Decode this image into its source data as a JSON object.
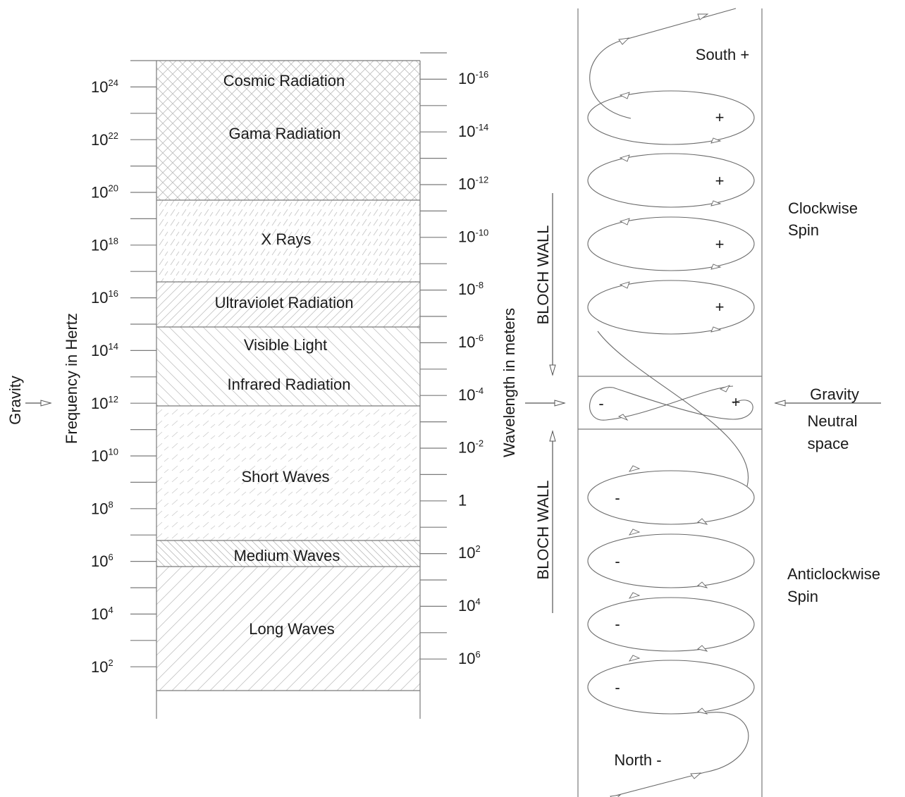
{
  "spectrum": {
    "frequency_axis_label": "Frequency in Hertz",
    "wavelength_axis_label": "Wavelength in meters",
    "gravity_label": "Gravity",
    "frequency_ticks": [
      {
        "base": "10",
        "exp": "24"
      },
      {
        "base": "10",
        "exp": "22"
      },
      {
        "base": "10",
        "exp": "20"
      },
      {
        "base": "10",
        "exp": "18"
      },
      {
        "base": "10",
        "exp": "16"
      },
      {
        "base": "10",
        "exp": "14"
      },
      {
        "base": "10",
        "exp": "12"
      },
      {
        "base": "10",
        "exp": "10"
      },
      {
        "base": "10",
        "exp": "8"
      },
      {
        "base": "10",
        "exp": "6"
      },
      {
        "base": "10",
        "exp": "4"
      },
      {
        "base": "10",
        "exp": "2"
      }
    ],
    "wavelength_ticks": [
      {
        "base": "10",
        "exp": "-16"
      },
      {
        "base": "10",
        "exp": "-14"
      },
      {
        "base": "10",
        "exp": "-12"
      },
      {
        "base": "10",
        "exp": "-10"
      },
      {
        "base": "10",
        "exp": "-8"
      },
      {
        "base": "10",
        "exp": "-6"
      },
      {
        "base": "10",
        "exp": "-4"
      },
      {
        "base": "10",
        "exp": "-2"
      },
      {
        "base": "1",
        "exp": ""
      },
      {
        "base": "10",
        "exp": "2"
      },
      {
        "base": "10",
        "exp": "4"
      },
      {
        "base": "10",
        "exp": "6"
      }
    ],
    "bands": [
      {
        "labels": [
          "Cosmic Radiation",
          "Gama Radiation"
        ]
      },
      {
        "labels": [
          "X Rays"
        ]
      },
      {
        "labels": [
          "Ultraviolet Radiation"
        ]
      },
      {
        "labels": [
          "Visible Light",
          "Infrared Radiation"
        ]
      },
      {
        "labels": [
          "Short Waves"
        ]
      },
      {
        "labels": [
          "Medium Waves"
        ]
      },
      {
        "labels": [
          "Long Waves"
        ]
      }
    ]
  },
  "spin": {
    "south_label": "South +",
    "north_label": "North -",
    "bloch_wall_label": "BLOCH WALL",
    "clockwise_label_line1": "Clockwise",
    "clockwise_label_line2": "Spin",
    "anticlockwise_label_line1": "Anticlockwise",
    "anticlockwise_label_line2": "Spin",
    "gravity_label": "Gravity",
    "neutral_label_line1": "Neutral",
    "neutral_label_line2": "space",
    "plus_sign": "+",
    "minus_sign": "-"
  }
}
